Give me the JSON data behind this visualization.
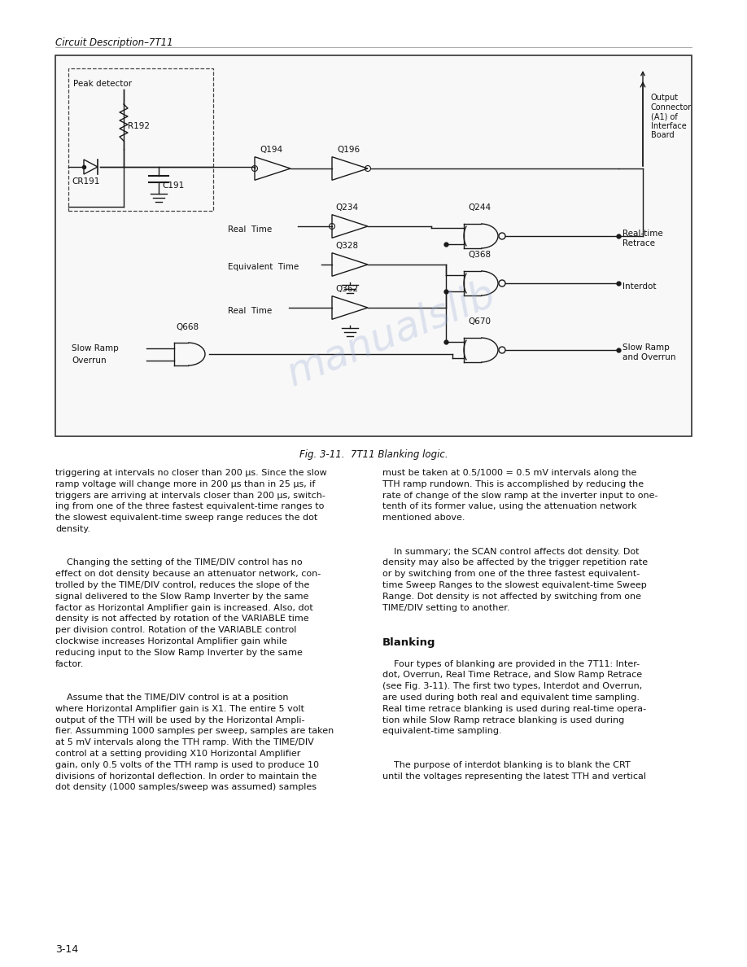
{
  "header": "Circuit Description–7T11",
  "fig_caption": "Fig. 3-11.  7T11 Blanking logic.",
  "page_number": "3-14",
  "bg": "#ffffff",
  "tc": "#111111",
  "wm": "#9baed4",
  "left_lines": [
    "triggering at intervals no closer than 200 μs. Since the slow",
    "ramp voltage will change more in 200 μs than in 25 μs, if",
    "triggers are arriving at intervals closer than 200 μs, switch-",
    "ing from one of the three fastest equivalent-time ranges to",
    "the slowest equivalent-time sweep range reduces the dot",
    "density.",
    "",
    "",
    "    Changing the setting of the TIME/DIV control has no",
    "effect on dot density because an attenuator network, con-",
    "trolled by the TIME/DIV control, reduces the slope of the",
    "signal delivered to the Slow Ramp Inverter by the same",
    "factor as Horizontal Amplifier gain is increased. Also, dot",
    "density is not affected by rotation of the VARIABLE time",
    "per division control. Rotation of the VARIABLE control",
    "clockwise increases Horizontal Amplifier gain while",
    "reducing input to the Slow Ramp Inverter by the same",
    "factor.",
    "",
    "",
    "    Assume that the TIME/DIV control is at a position",
    "where Horizontal Amplifier gain is X1. The entire 5 volt",
    "output of the TTH will be used by the Horizontal Ampli-",
    "fier. Assumming 1000 samples per sweep, samples are taken",
    "at 5 mV intervals along the TTH ramp. With the TIME/DIV",
    "control at a setting providing X10 Horizontal Amplifier",
    "gain, only 0.5 volts of the TTH ramp is used to produce 10",
    "divisions of horizontal deflection. In order to maintain the",
    "dot density (1000 samples/sweep was assumed) samples"
  ],
  "right_lines": [
    "must be taken at 0.5/1000 = 0.5 mV intervals along the",
    "TTH ramp rundown. This is accomplished by reducing the",
    "rate of change of the slow ramp at the inverter input to one-",
    "tenth of its former value, using the attenuation network",
    "mentioned above.",
    "",
    "",
    "    In summary; the SCAN control affects dot density. Dot",
    "density may also be affected by the trigger repetition rate",
    "or by switching from one of the three fastest equivalent-",
    "time Sweep Ranges to the slowest equivalent-time Sweep",
    "Range. Dot density is not affected by switching from one",
    "TIME/DIV setting to another.",
    "",
    "",
    "Blanking",
    "",
    "    Four types of blanking are provided in the 7T11: Inter-",
    "dot, Overrun, Real Time Retrace, and Slow Ramp Retrace",
    "(see Fig. 3-11). The first two types, Interdot and Overrun,",
    "are used during both real and equivalent time sampling.",
    "Real time retrace blanking is used during real-time opera-",
    "tion while Slow Ramp retrace blanking is used during",
    "equivalent-time sampling.",
    "",
    "",
    "    The purpose of interdot blanking is to blank the CRT",
    "until the voltages representing the latest TTH and vertical"
  ]
}
